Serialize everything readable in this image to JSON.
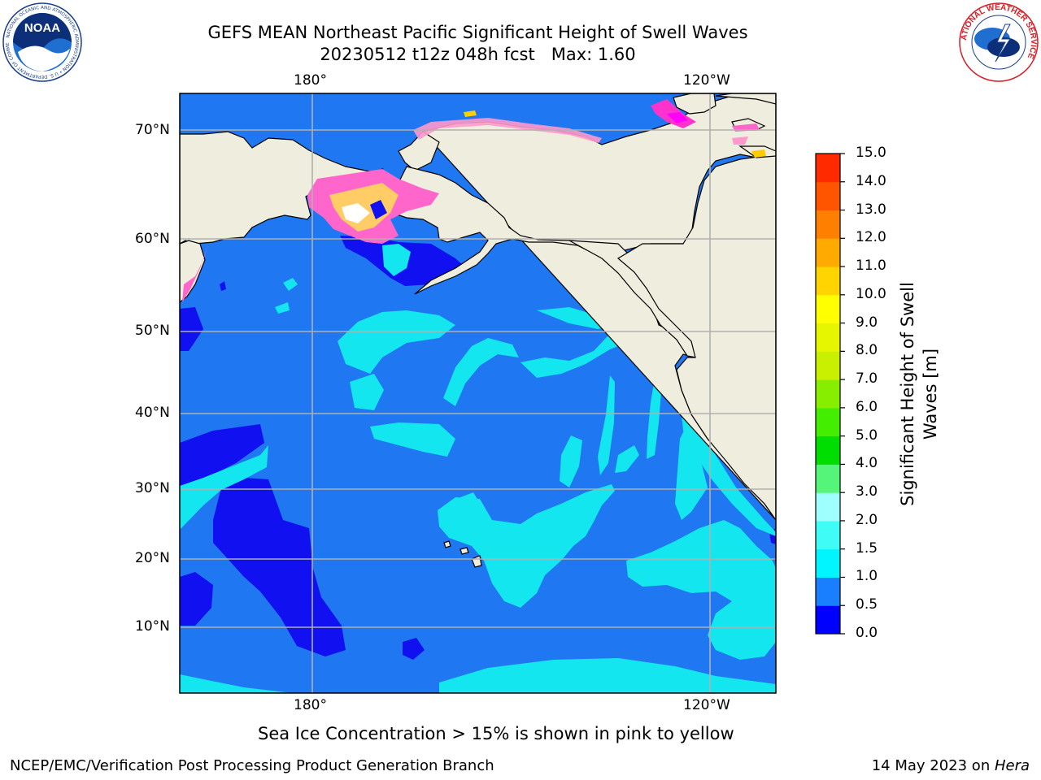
{
  "title": {
    "line1": "GEFS MEAN Northeast Pacific Significant Height of Swell Waves",
    "line2": "20230512 t12z 048h fcst   Max: 1.60"
  },
  "map": {
    "lon_labels_top": [
      "180°",
      "120°W"
    ],
    "lon_labels_bottom": [
      "180°",
      "120°W"
    ],
    "lat_labels": [
      "70°N",
      "60°N",
      "50°N",
      "40°N",
      "30°N",
      "20°N",
      "10°N"
    ],
    "note": "Sea Ice Concentration > 15% is shown in pink to yellow",
    "colors": {
      "land": "#efedde",
      "ocean_main": "#1f78f2",
      "ocean_low": "#1010f0",
      "ocean_cyan": "#14e6f0",
      "grid": "#b0b0b0",
      "ice_pink": "#ff33cc",
      "ice_yellow": "#ffd000"
    }
  },
  "colorbar": {
    "title": "Significant Height of Swell Waves [m]",
    "ticks": [
      "0.0",
      "0.5",
      "1.0",
      "1.5",
      "2.0",
      "3.0",
      "4.0",
      "5.0",
      "6.0",
      "7.0",
      "8.0",
      "9.0",
      "10.0",
      "11.0",
      "12.0",
      "13.0",
      "14.0",
      "15.0"
    ],
    "colors": [
      "#0000ff",
      "#1a7fff",
      "#00f5ff",
      "#40fcf7",
      "#9ffefe",
      "#55f57a",
      "#00dd00",
      "#44ee00",
      "#88ee00",
      "#c8f000",
      "#e6f500",
      "#ffff00",
      "#ffd400",
      "#ffaa00",
      "#ff7f00",
      "#ff5500",
      "#ff2a00"
    ]
  },
  "logos": {
    "noaa_text": "NOAA",
    "noaa_ring": "NATIONAL OCEANIC AND ATMOSPHERIC ADMINISTRATION • U.S. DEPARTMENT OF COMMERCE",
    "nws_ring": "NATIONAL WEATHER SERVICE"
  },
  "footer": {
    "left": "NCEP/EMC/Verification Post Processing Product Generation Branch",
    "right_prefix": "14 May 2023 on ",
    "right_machine": "Hera"
  }
}
